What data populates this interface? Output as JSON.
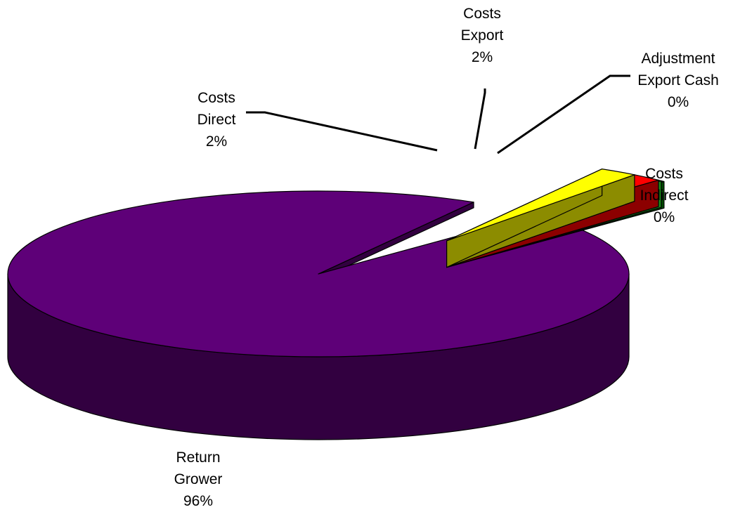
{
  "chart_data": {
    "type": "pie",
    "style": "3d-exploded",
    "title": "",
    "legend": "none",
    "slices": [
      {
        "name": "Return Grower",
        "label_lines": [
          "Return",
          "Grower"
        ],
        "percent_label": "96%",
        "value": 96.0,
        "color": "#5e0078",
        "side_color": "#320040"
      },
      {
        "name": "Costs Direct",
        "label_lines": [
          "Costs",
          "Direct"
        ],
        "percent_label": "2%",
        "value": 2.0,
        "color": "#ffff00",
        "side_color": "#8c8c00"
      },
      {
        "name": "Costs Export",
        "label_lines": [
          "Costs",
          "Export"
        ],
        "percent_label": "2%",
        "value": 1.6,
        "color": "#ff0000",
        "side_color": "#8c0000"
      },
      {
        "name": "Adjustment Export Cash",
        "label_lines": [
          "Adjustment",
          "Export Cash"
        ],
        "percent_label": "0%",
        "value": 0.2,
        "color": "#33ff33",
        "side_color": "#1a8c1a"
      },
      {
        "name": "Costs Indirect",
        "label_lines": [
          "Costs",
          "Indirect"
        ],
        "percent_label": "0%",
        "value": 0.2,
        "color": "#008c00",
        "side_color": "#004a00"
      }
    ]
  }
}
